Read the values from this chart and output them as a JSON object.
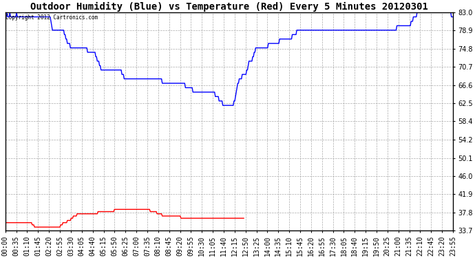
{
  "title": "Outdoor Humidity (Blue) vs Temperature (Red) Every 5 Minutes 20120301",
  "copyright_text": "Copyright 2012 Cartronics.com",
  "y_min": 33.7,
  "y_max": 83.0,
  "y_ticks": [
    33.7,
    37.8,
    41.9,
    46.0,
    50.1,
    54.2,
    58.4,
    62.5,
    66.6,
    70.7,
    74.8,
    78.9,
    83.0
  ],
  "bg_color": "#FFFFFF",
  "grid_color": "#AAAAAA",
  "blue_color": "#0000FF",
  "red_color": "#FF0000",
  "title_fontsize": 10,
  "tick_fontsize": 7,
  "x_labels": [
    "00:00",
    "00:35",
    "01:10",
    "01:45",
    "02:20",
    "02:55",
    "03:30",
    "04:05",
    "04:40",
    "05:15",
    "05:50",
    "06:25",
    "07:00",
    "07:35",
    "08:10",
    "08:45",
    "09:20",
    "09:55",
    "10:30",
    "11:05",
    "11:40",
    "12:15",
    "12:50",
    "13:25",
    "14:00",
    "14:35",
    "15:10",
    "15:45",
    "16:20",
    "16:55",
    "17:30",
    "18:05",
    "18:40",
    "19:15",
    "19:50",
    "20:25",
    "21:00",
    "21:35",
    "22:10",
    "22:45",
    "23:20",
    "23:55"
  ],
  "blue_data": [
    81,
    82,
    83,
    82,
    82,
    82,
    83,
    82,
    82,
    82,
    82,
    82,
    82,
    82,
    82,
    83,
    82,
    82,
    82,
    82,
    82,
    82,
    82,
    82,
    82,
    82,
    82,
    82,
    82,
    82,
    82,
    82,
    82,
    82,
    82,
    82,
    82,
    82,
    82,
    82,
    82,
    82,
    82,
    82,
    82,
    82,
    82,
    82,
    82,
    82,
    82,
    82,
    82,
    82,
    82,
    82,
    82,
    82,
    82,
    82,
    82,
    81,
    80,
    79,
    79,
    79,
    79,
    79,
    79,
    79,
    79,
    79,
    79,
    79,
    79,
    79,
    79,
    79,
    79,
    78,
    78,
    77,
    77,
    76,
    76,
    76,
    76,
    75,
    75,
    75,
    75,
    75,
    75,
    75,
    75,
    75,
    75,
    75,
    75,
    75,
    75,
    75,
    75,
    75,
    75,
    75,
    75,
    75,
    75,
    75,
    74,
    74,
    74,
    74,
    74,
    74,
    74,
    74,
    74,
    74,
    74,
    73,
    73,
    72,
    72,
    72,
    71,
    71,
    70,
    70,
    70,
    70,
    70,
    70,
    70,
    70,
    70,
    70,
    70,
    70,
    70,
    70,
    70,
    70,
    70,
    70,
    70,
    70,
    70,
    70,
    70,
    70,
    70,
    70,
    70,
    70,
    69,
    69,
    69,
    68,
    68,
    68,
    68,
    68,
    68,
    68,
    68,
    68,
    68,
    68,
    68,
    68,
    68,
    68,
    68,
    68,
    68,
    68,
    68,
    68,
    68,
    68,
    68,
    68,
    68,
    68,
    68,
    68,
    68,
    68,
    68,
    68,
    68,
    68,
    68,
    68,
    68,
    68,
    68,
    68,
    68,
    68,
    68,
    68,
    68,
    68,
    68,
    68,
    68,
    68,
    67,
    67,
    67,
    67,
    67,
    67,
    67,
    67,
    67,
    67,
    67,
    67,
    67,
    67,
    67,
    67,
    67,
    67,
    67,
    67,
    67,
    67,
    67,
    67,
    67,
    67,
    67,
    67,
    67,
    67,
    67,
    66,
    66,
    66,
    66,
    66,
    66,
    66,
    66,
    66,
    66,
    65,
    65,
    65,
    65,
    65,
    65,
    65,
    65,
    65,
    65,
    65,
    65,
    65,
    65,
    65,
    65,
    65,
    65,
    65,
    65,
    65,
    65,
    65,
    65,
    65,
    65,
    65,
    65,
    65,
    65,
    64,
    64,
    64,
    64,
    64,
    63,
    63,
    63,
    63,
    63,
    62,
    62,
    62,
    62,
    62,
    62,
    62,
    62,
    62,
    62,
    62,
    62,
    62,
    62,
    62,
    63,
    63,
    64,
    65,
    66,
    67,
    67,
    68,
    68,
    68,
    68,
    69,
    69,
    69,
    69,
    69,
    69,
    70,
    70,
    71,
    72,
    72,
    72,
    72,
    72,
    73,
    73,
    74,
    74,
    75,
    75,
    75,
    75,
    75,
    75,
    75,
    75,
    75,
    75,
    75,
    75,
    75,
    75,
    75,
    75,
    75,
    76,
    76,
    76,
    76,
    76,
    76,
    76,
    76,
    76,
    76,
    76,
    76,
    76,
    76,
    76,
    77,
    77,
    77,
    77,
    77,
    77,
    77,
    77,
    77,
    77,
    77,
    77,
    77,
    77,
    77,
    77,
    77,
    78,
    78,
    78,
    78,
    78,
    78,
    79,
    79,
    79,
    79,
    79,
    79,
    79,
    79,
    79,
    79,
    79,
    79,
    79,
    79,
    79,
    79,
    79,
    79,
    79,
    79,
    79,
    79,
    79,
    79,
    79,
    79,
    79,
    79,
    79,
    79,
    79,
    79,
    79,
    79,
    79,
    79,
    79,
    79,
    79,
    79,
    79,
    79,
    79,
    79,
    79,
    79,
    79,
    79,
    79,
    79,
    79,
    79,
    79,
    79,
    79,
    79,
    79,
    79,
    79,
    79,
    79,
    79,
    79,
    79,
    79,
    79,
    79,
    79,
    79,
    79,
    79,
    79,
    79,
    79,
    79,
    79,
    79,
    79,
    79,
    79,
    79,
    79,
    79,
    79,
    79,
    79,
    79,
    79,
    79,
    79,
    79,
    79,
    79,
    79,
    79,
    79,
    79,
    79,
    79,
    79,
    79,
    79,
    79,
    79,
    79,
    79,
    79,
    79,
    79,
    79,
    79,
    79,
    79,
    79,
    79,
    79,
    79,
    79,
    79,
    79,
    79,
    79,
    79,
    79,
    79,
    79,
    79,
    79,
    79,
    79,
    79,
    79,
    79,
    79,
    80,
    80,
    80,
    80,
    80,
    80,
    80,
    80,
    80,
    80,
    80,
    80,
    80,
    80,
    80,
    80,
    80,
    80,
    80,
    81,
    81,
    81,
    82,
    82,
    82,
    82,
    82,
    83,
    83,
    83,
    83,
    83,
    83,
    83,
    83,
    83,
    83,
    83,
    83,
    83,
    83,
    83,
    83,
    83,
    83,
    83,
    83,
    83,
    83,
    83,
    83,
    83,
    83,
    83,
    83,
    83,
    83,
    83,
    83,
    83,
    83,
    83,
    83,
    83,
    83,
    83,
    83,
    83,
    83,
    83,
    83,
    83,
    83,
    82,
    82,
    82
  ],
  "red_data": [
    35.5,
    35.5,
    35.5,
    35.5,
    35.5,
    35.5,
    35.5,
    35.5,
    35.5,
    35.5,
    35.5,
    35.5,
    35.5,
    35.5,
    35.5,
    35.5,
    35.5,
    35.5,
    35.5,
    35.5,
    35.5,
    35.5,
    35.5,
    35.5,
    35.5,
    35.5,
    35.5,
    35.5,
    35.5,
    35.5,
    35.5,
    35.5,
    35.5,
    35.5,
    35.5,
    35.5,
    35.0,
    35.0,
    35.0,
    34.5,
    34.5,
    34.5,
    34.5,
    34.5,
    34.5,
    34.5,
    34.5,
    34.5,
    34.5,
    34.5,
    34.5,
    34.5,
    34.5,
    34.5,
    34.5,
    34.5,
    34.5,
    34.5,
    34.5,
    34.5,
    34.5,
    34.5,
    34.5,
    34.5,
    34.5,
    34.5,
    34.5,
    34.5,
    34.5,
    34.5,
    34.5,
    34.5,
    34.5,
    34.5,
    35.0,
    35.0,
    35.0,
    35.5,
    35.5,
    35.5,
    35.5,
    35.5,
    35.5,
    36.0,
    36.0,
    36.0,
    36.0,
    36.0,
    36.5,
    36.5,
    36.5,
    37.0,
    37.0,
    37.0,
    37.0,
    37.0,
    37.5,
    37.5,
    37.5,
    37.5,
    37.5,
    37.5,
    37.5,
    37.5,
    37.5,
    37.5,
    37.5,
    37.5,
    37.5,
    37.5,
    37.5,
    37.5,
    37.5,
    37.5,
    37.5,
    37.5,
    37.5,
    37.5,
    37.5,
    37.5,
    37.5,
    37.5,
    37.5,
    37.5,
    38.0,
    38.0,
    38.0,
    38.0,
    38.0,
    38.0,
    38.0,
    38.0,
    38.0,
    38.0,
    38.0,
    38.0,
    38.0,
    38.0,
    38.0,
    38.0,
    38.0,
    38.0,
    38.0,
    38.0,
    38.0,
    38.0,
    38.5,
    38.5,
    38.5,
    38.5,
    38.5,
    38.5,
    38.5,
    38.5,
    38.5,
    38.5,
    38.5,
    38.5,
    38.5,
    38.5,
    38.5,
    38.5,
    38.5,
    38.5,
    38.5,
    38.5,
    38.5,
    38.5,
    38.5,
    38.5,
    38.5,
    38.5,
    38.5,
    38.5,
    38.5,
    38.5,
    38.5,
    38.5,
    38.5,
    38.5,
    38.5,
    38.5,
    38.5,
    38.5,
    38.5,
    38.5,
    38.5,
    38.5,
    38.5,
    38.5,
    38.5,
    38.5,
    38.5,
    38.5,
    38.0,
    38.0,
    38.0,
    38.0,
    38.0,
    38.0,
    38.0,
    38.0,
    38.0,
    37.5,
    37.5,
    37.5,
    37.5,
    37.5,
    37.5,
    37.5,
    37.0,
    37.0,
    37.0,
    37.0,
    37.0,
    37.0,
    37.0,
    37.0,
    37.0,
    37.0,
    37.0,
    37.0,
    37.0,
    37.0,
    37.0,
    37.0,
    37.0,
    37.0,
    37.0,
    37.0,
    37.0,
    37.0,
    37.0,
    37.0,
    37.0,
    36.5,
    36.5,
    36.5,
    36.5,
    36.5,
    36.5,
    36.5,
    36.5,
    36.5,
    36.5,
    36.5,
    36.5,
    36.5,
    36.5,
    36.5,
    36.5,
    36.5,
    36.5,
    36.5,
    36.5,
    36.5,
    36.5,
    36.5,
    36.5,
    36.5,
    36.5,
    36.5,
    36.5,
    36.5,
    36.5,
    36.5,
    36.5,
    36.5,
    36.5,
    36.5,
    36.5,
    36.5,
    36.5,
    36.5,
    36.5,
    36.5,
    36.5,
    36.5,
    36.5,
    36.5,
    36.5,
    36.5,
    36.5,
    36.5,
    36.5,
    36.5,
    36.5,
    36.5,
    36.5,
    36.5,
    36.5,
    36.5,
    36.5,
    36.5,
    36.5,
    36.5,
    36.5,
    36.5,
    36.5,
    36.5,
    36.5,
    36.5,
    36.5,
    36.5,
    36.5,
    36.5,
    36.5,
    36.5,
    36.5,
    36.5,
    36.5,
    36.5,
    36.5,
    36.5,
    36.5,
    36.5,
    36.5,
    36.5,
    36.5,
    36.5
  ]
}
